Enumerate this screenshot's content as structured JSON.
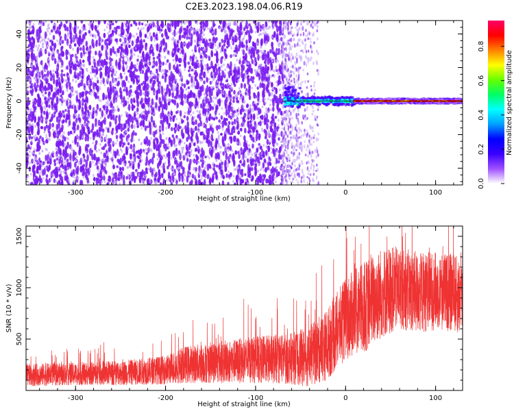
{
  "title": "C2E3.2023.198.04.06.R19",
  "colors": {
    "spec_dots": "#7a1cf0",
    "spec_faint": "#c8a8f7",
    "snr_line": "#ef3333",
    "colormap": [
      "#ffffff",
      "#a050ff",
      "#3a00ff",
      "#0000ff",
      "#00a0ff",
      "#00ffff",
      "#00ff66",
      "#66ff00",
      "#ffff00",
      "#ff8000",
      "#ff0000",
      "#ff0066"
    ]
  },
  "chart_data": [
    {
      "type": "heatmap",
      "xlabel": "Height of straight line (km)",
      "ylabel": "Frequency (Hz)",
      "xlim": [
        -355,
        130
      ],
      "ylim": [
        -50,
        48
      ],
      "xticks": [
        -300,
        -200,
        -100,
        0,
        100
      ],
      "yticks": [
        -40,
        -20,
        0,
        20,
        40
      ],
      "colorbar": {
        "label": "Normalized spectral amplitude",
        "range": [
          0,
          0.95
        ],
        "ticks": [
          0.0,
          0.2,
          0.4,
          0.6,
          0.8
        ]
      },
      "regions": [
        {
          "x": [
            -355,
            -70
          ],
          "freq_range": [
            -50,
            48
          ],
          "amplitude": 0.1,
          "pattern": "broadband-noise"
        },
        {
          "x": [
            -70,
            -30
          ],
          "freq_range": [
            -50,
            48
          ],
          "amplitude": 0.03,
          "pattern": "sparse-noise"
        },
        {
          "x": [
            -68,
            -50
          ],
          "freq": 0,
          "freq_halfwidth": 6,
          "amplitude": 0.45,
          "pattern": "tone-onset"
        },
        {
          "x": [
            -50,
            10
          ],
          "freq": 0,
          "freq_halfwidth": 3,
          "amplitude": 0.5,
          "pattern": "tone"
        },
        {
          "x": [
            10,
            130
          ],
          "freq": 0,
          "freq_halfwidth": 1,
          "amplitude": 0.9,
          "pattern": "tone"
        }
      ]
    },
    {
      "type": "line",
      "xlabel": "Height of straight line (km)",
      "ylabel": "SNR (10 * v/v)",
      "xlim": [
        -355,
        130
      ],
      "ylim": [
        0,
        1600
      ],
      "xticks": [
        -300,
        -200,
        -100,
        0,
        100
      ],
      "yticks": [
        500,
        1000,
        1500
      ],
      "series": [
        {
          "x": [
            -355,
            -300,
            -250,
            -200,
            -180,
            -150,
            -100,
            -60,
            -40,
            -20,
            0,
            20,
            40,
            60,
            80,
            100,
            120,
            130
          ],
          "y": [
            150,
            160,
            170,
            200,
            250,
            270,
            300,
            310,
            330,
            450,
            700,
            800,
            950,
            1000,
            950,
            970,
            950,
            900
          ],
          "spread": [
            110,
            110,
            120,
            140,
            180,
            200,
            230,
            250,
            300,
            350,
            400,
            450,
            450,
            400,
            400,
            380,
            380,
            380
          ]
        }
      ]
    }
  ]
}
